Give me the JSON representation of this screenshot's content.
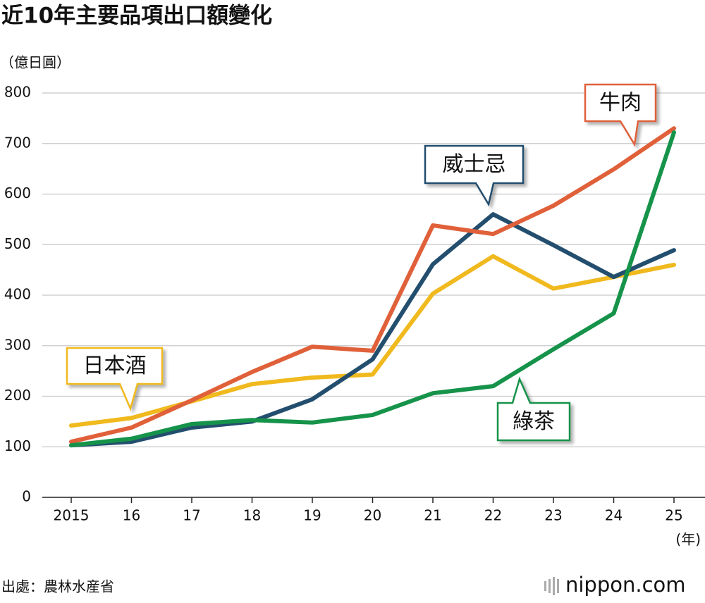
{
  "chart_data": {
    "type": "line",
    "title": "近10年主要品項出口額變化",
    "y_label": "（億日圓）",
    "x_label": "(年)",
    "categories": [
      "2015",
      "16",
      "17",
      "18",
      "19",
      "20",
      "21",
      "22",
      "23",
      "24",
      "25"
    ],
    "series": [
      {
        "name": "日本酒",
        "color": "#f0b91e",
        "values": [
          142,
          157,
          190,
          224,
          237,
          243,
          403,
          477,
          413,
          436,
          460
        ]
      },
      {
        "name": "威士忌",
        "color": "#234e6e",
        "values": [
          103,
          110,
          138,
          150,
          194,
          273,
          461,
          560,
          499,
          436,
          489
        ]
      },
      {
        "name": "牛肉",
        "color": "#e0603a",
        "values": [
          110,
          138,
          192,
          248,
          298,
          290,
          538,
          521,
          577,
          649,
          730
        ]
      },
      {
        "name": "綠茶",
        "color": "#16934a",
        "values": [
          103,
          116,
          145,
          153,
          148,
          163,
          206,
          220,
          293,
          364,
          722
        ]
      }
    ],
    "ylim": [
      0,
      800
    ],
    "yticks": [
      0,
      100,
      200,
      300,
      400,
      500,
      600,
      700,
      800
    ],
    "grid": true
  },
  "footer": {
    "source": "出處：農林水産省",
    "logo": "nippon.com"
  }
}
